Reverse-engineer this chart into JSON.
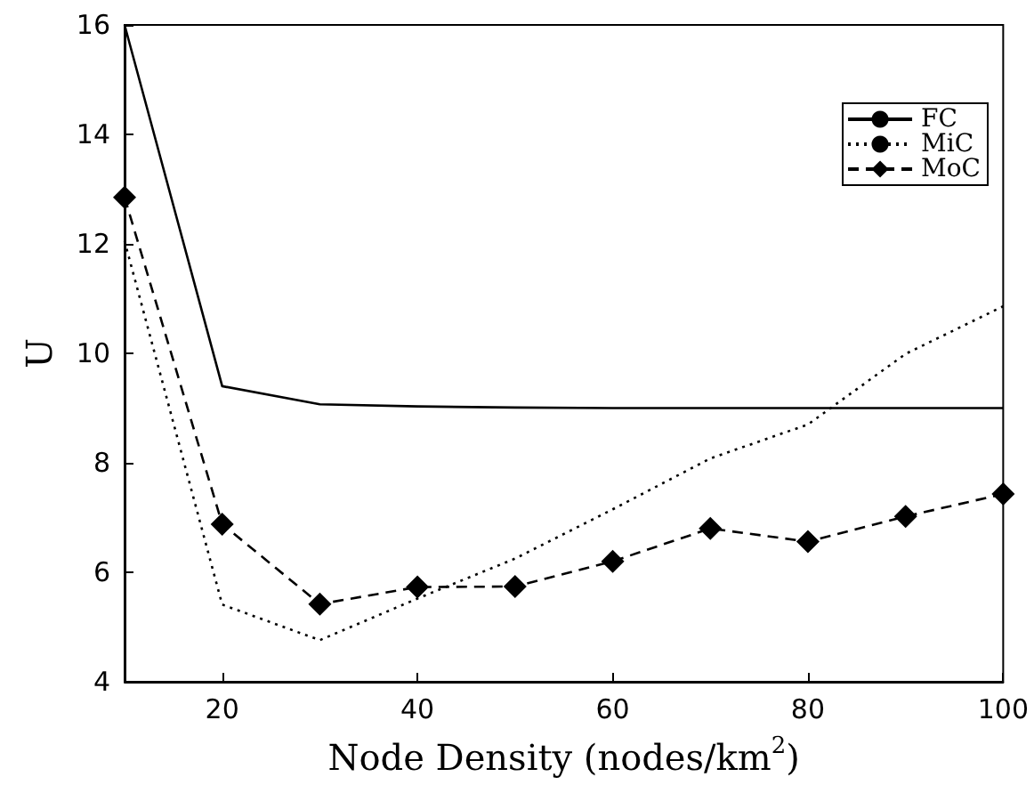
{
  "chart_data": {
    "type": "line",
    "xlabel": "Node Density (nodes/km$^{2}$)",
    "ylabel": "U",
    "x": [
      10,
      20,
      30,
      40,
      50,
      60,
      70,
      80,
      90,
      100
    ],
    "series": [
      {
        "name": "FC",
        "color": "#000000",
        "line_style": "solid",
        "marker": "none",
        "values": [
          16,
          9.4,
          9.07,
          9.03,
          9.01,
          9.0,
          9.0,
          9.0,
          9.0,
          9.0
        ]
      },
      {
        "name": "MiC",
        "color": "#000000",
        "line_style": "dotted",
        "marker": "none",
        "values": [
          12.05,
          5.41,
          4.76,
          5.52,
          6.25,
          7.15,
          8.08,
          8.7,
          9.99,
          10.86
        ]
      },
      {
        "name": "MoC",
        "color": "#000000",
        "line_style": "dashed",
        "marker": "diamond",
        "values": [
          12.85,
          6.88,
          5.42,
          5.73,
          5.74,
          6.2,
          6.8,
          6.56,
          7.02,
          7.43
        ]
      }
    ],
    "xlim": [
      10,
      100
    ],
    "xticks": [
      20,
      40,
      60,
      80,
      100
    ],
    "ylim": [
      4,
      16
    ],
    "yticks": [
      4,
      6,
      8,
      10,
      12,
      14,
      16
    ],
    "grid": false,
    "legend": "top right"
  }
}
